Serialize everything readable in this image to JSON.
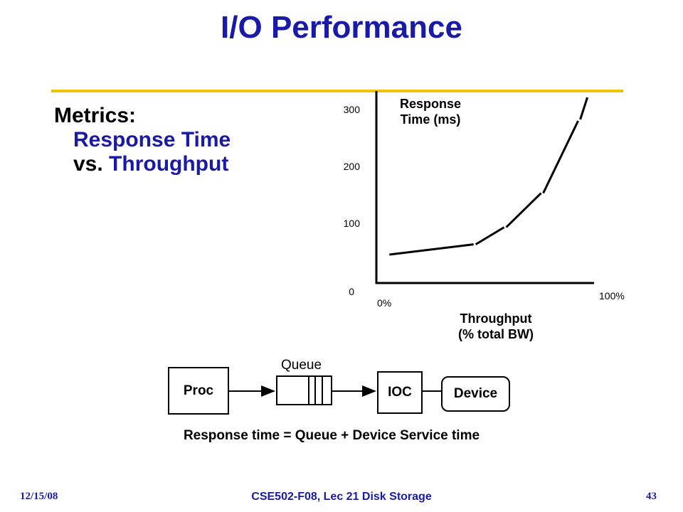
{
  "title": "I/O Performance",
  "metrics": {
    "heading": "Metrics:",
    "line1": "Response Time",
    "line2_prefix": "vs. ",
    "line2_highlight": "Throughput"
  },
  "chart_data": {
    "type": "line",
    "ylabel_line1": "Response",
    "ylabel_line2": "Time (ms)",
    "xlabel_line1": "Throughput",
    "xlabel_line2": "(% total BW)",
    "ytick_labels": [
      "0",
      "100",
      "200",
      "300"
    ],
    "xtick_labels": [
      "0%",
      "100%"
    ],
    "xlim": [
      0,
      100
    ],
    "ylim": [
      0,
      320
    ],
    "series": [
      {
        "x": [
          6,
          45,
          59,
          76,
          93
        ],
        "y": [
          50,
          68,
          98,
          158,
          285
        ]
      }
    ]
  },
  "diagram": {
    "proc_label": "Proc",
    "queue_label": "Queue",
    "ioc_label": "IOC",
    "device_label": "Device",
    "equation": "Response time = Queue + Device Service time"
  },
  "footer": {
    "date": "12/15/08",
    "course": "CSE502-F08, Lec 21 Disk Storage",
    "page": "43"
  }
}
